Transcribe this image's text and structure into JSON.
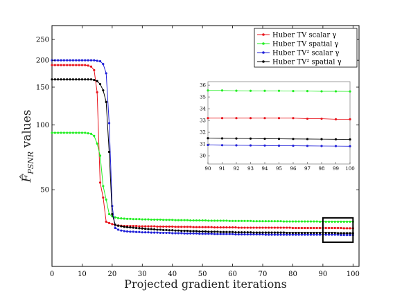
{
  "chart_data": [
    {
      "type": "line",
      "xlabel": "Projected gradient iterations",
      "ylabel": "F̂_PSNR values",
      "xlim": [
        0,
        102
      ],
      "ylim": [
        22,
        290
      ],
      "yscale": "log",
      "grid": false,
      "legend": "top-right",
      "x_ticks": [
        0,
        10,
        20,
        30,
        40,
        50,
        60,
        70,
        80,
        90,
        100
      ],
      "y_ticks": [
        50,
        100,
        150,
        200,
        250
      ],
      "x_tick_labels": [
        "0",
        "10",
        "20",
        "30",
        "40",
        "50",
        "60",
        "70",
        "80",
        "90",
        "100"
      ],
      "y_tick_labels": [
        "50",
        "100",
        "150",
        "200",
        "250"
      ],
      "x": [
        0,
        1,
        2,
        3,
        4,
        5,
        6,
        7,
        8,
        9,
        10,
        11,
        12,
        13,
        14,
        15,
        16,
        17,
        18,
        19,
        20,
        21,
        22,
        23,
        24,
        25,
        26,
        27,
        28,
        29,
        30,
        31,
        32,
        33,
        34,
        35,
        36,
        37,
        38,
        39,
        40,
        41,
        42,
        43,
        44,
        45,
        46,
        47,
        48,
        49,
        50,
        51,
        52,
        53,
        54,
        55,
        56,
        57,
        58,
        59,
        60,
        61,
        62,
        63,
        64,
        65,
        66,
        67,
        68,
        69,
        70,
        71,
        72,
        73,
        74,
        75,
        76,
        77,
        78,
        79,
        80,
        81,
        82,
        83,
        84,
        85,
        86,
        87,
        88,
        89,
        90,
        91,
        92,
        93,
        94,
        95,
        96,
        97,
        98,
        99,
        100
      ],
      "series": [
        {
          "name": "Huber TV scalar γ",
          "color": "#e8141c",
          "values": [
            190,
            190,
            190,
            190,
            190,
            190,
            190,
            190,
            190,
            190,
            190,
            190,
            189,
            187,
            180,
            142,
            54,
            46,
            35.5,
            35.0,
            34.6,
            34.3,
            34.1,
            34.0,
            33.9,
            33.9,
            33.9,
            33.9,
            33.9,
            33.8,
            33.8,
            33.8,
            33.8,
            33.8,
            33.8,
            33.7,
            33.7,
            33.7,
            33.7,
            33.7,
            33.7,
            33.6,
            33.6,
            33.6,
            33.6,
            33.6,
            33.6,
            33.5,
            33.5,
            33.5,
            33.5,
            33.5,
            33.5,
            33.5,
            33.4,
            33.4,
            33.4,
            33.4,
            33.4,
            33.4,
            33.4,
            33.4,
            33.3,
            33.3,
            33.3,
            33.3,
            33.3,
            33.3,
            33.3,
            33.3,
            33.3,
            33.3,
            33.3,
            33.3,
            33.3,
            33.3,
            33.3,
            33.3,
            33.3,
            33.3,
            33.2,
            33.2,
            33.2,
            33.2,
            33.2,
            33.2,
            33.2,
            33.2,
            33.2,
            33.2,
            33.2,
            33.2,
            33.2,
            33.2,
            33.2,
            33.2,
            33.2,
            33.1,
            33.1,
            33.1,
            33.1
          ]
        },
        {
          "name": "Huber TV spatial γ",
          "color": "#22ee22",
          "values": [
            92,
            92,
            92,
            92,
            92,
            92,
            92,
            92,
            92,
            92,
            92,
            92,
            91.5,
            91,
            89,
            82,
            72,
            52,
            45,
            38.5,
            37.6,
            37.2,
            36.9,
            36.8,
            36.7,
            36.6,
            36.6,
            36.5,
            36.5,
            36.5,
            36.4,
            36.4,
            36.4,
            36.3,
            36.3,
            36.3,
            36.3,
            36.2,
            36.2,
            36.2,
            36.2,
            36.1,
            36.1,
            36.1,
            36.1,
            36.1,
            36.0,
            36.0,
            36.0,
            36.0,
            36.0,
            36.0,
            35.9,
            35.9,
            35.9,
            35.9,
            35.9,
            35.9,
            35.9,
            35.8,
            35.8,
            35.8,
            35.8,
            35.8,
            35.8,
            35.8,
            35.8,
            35.7,
            35.7,
            35.7,
            35.7,
            35.7,
            35.7,
            35.7,
            35.7,
            35.7,
            35.7,
            35.6,
            35.6,
            35.6,
            35.6,
            35.6,
            35.6,
            35.6,
            35.6,
            35.6,
            35.6,
            35.6,
            35.6,
            35.5,
            35.5,
            35.5,
            35.5,
            35.5,
            35.5,
            35.5,
            35.5,
            35.5,
            35.5,
            35.5,
            35.5
          ]
        },
        {
          "name": "Huber TV² scalar γ",
          "color": "#1f1fd8",
          "values": [
            200,
            200,
            200,
            200,
            200,
            200,
            200,
            200,
            200,
            200,
            200,
            200,
            200,
            200,
            200,
            199,
            198,
            192,
            174,
            102,
            42,
            33.2,
            32.6,
            32.3,
            32.1,
            32.0,
            31.9,
            31.9,
            31.8,
            31.8,
            31.7,
            31.7,
            31.7,
            31.6,
            31.6,
            31.6,
            31.5,
            31.5,
            31.5,
            31.5,
            31.4,
            31.4,
            31.4,
            31.4,
            31.3,
            31.3,
            31.3,
            31.3,
            31.3,
            31.2,
            31.2,
            31.2,
            31.2,
            31.2,
            31.1,
            31.1,
            31.1,
            31.1,
            31.1,
            31.1,
            31.1,
            31.0,
            31.0,
            31.0,
            31.0,
            31.0,
            31.0,
            31.0,
            31.0,
            31.0,
            31.0,
            30.9,
            30.9,
            30.9,
            30.9,
            30.9,
            30.9,
            30.9,
            30.9,
            30.9,
            30.9,
            30.9,
            30.9,
            30.9,
            30.9,
            30.9,
            30.9,
            30.9,
            30.9,
            30.9,
            30.9,
            30.9,
            30.9,
            30.9,
            30.9,
            30.9,
            30.8,
            30.8,
            30.8,
            30.8,
            30.8
          ]
        },
        {
          "name": "Huber TV² spatial γ",
          "color": "#000000",
          "values": [
            163,
            163,
            163,
            163,
            163,
            163,
            163,
            163,
            163,
            163,
            163,
            163,
            163,
            163,
            162,
            160,
            155,
            145,
            128,
            75,
            38.5,
            34.4,
            34.0,
            33.8,
            33.6,
            33.5,
            33.4,
            33.3,
            33.2,
            33.1,
            33.0,
            32.9,
            32.8,
            32.8,
            32.7,
            32.6,
            32.6,
            32.5,
            32.5,
            32.4,
            32.4,
            32.3,
            32.3,
            32.2,
            32.2,
            32.2,
            32.1,
            32.1,
            32.1,
            32.0,
            32.0,
            32.0,
            31.9,
            31.9,
            31.9,
            31.9,
            31.8,
            31.8,
            31.8,
            31.8,
            31.8,
            31.7,
            31.7,
            31.7,
            31.7,
            31.7,
            31.7,
            31.6,
            31.6,
            31.6,
            31.6,
            31.6,
            31.6,
            31.6,
            31.6,
            31.6,
            31.6,
            31.6,
            31.5,
            31.5,
            31.5,
            31.5,
            31.5,
            31.5,
            31.5,
            31.5,
            31.5,
            31.5,
            31.5,
            31.5,
            31.5,
            31.5,
            31.5,
            31.5,
            31.5,
            31.4,
            31.4,
            31.4,
            31.4,
            31.4,
            31.4
          ]
        }
      ],
      "highlight_box": {
        "x": [
          90,
          100
        ],
        "y": [
          28.5,
          37
        ]
      }
    },
    {
      "type": "line",
      "role": "inset",
      "xlim": [
        90,
        100
      ],
      "ylim": [
        29.3,
        36.3
      ],
      "x_ticks": [
        90,
        91,
        92,
        93,
        94,
        95,
        96,
        97,
        98,
        99,
        100
      ],
      "y_ticks": [
        30,
        31,
        32,
        33,
        34,
        35,
        36
      ],
      "x_tick_labels": [
        "90",
        "91",
        "92",
        "93",
        "94",
        "95",
        "96",
        "97",
        "98",
        "99",
        "100"
      ],
      "y_tick_labels": [
        "30",
        "31",
        "32",
        "33",
        "34",
        "35",
        "36"
      ],
      "x": [
        90,
        91,
        92,
        93,
        94,
        95,
        96,
        97,
        98,
        99,
        100
      ],
      "series": [
        {
          "name": "Huber TV scalar γ",
          "color": "#e8141c",
          "values": [
            33.2,
            33.2,
            33.2,
            33.2,
            33.2,
            33.2,
            33.2,
            33.15,
            33.15,
            33.1,
            33.1
          ]
        },
        {
          "name": "Huber TV spatial γ",
          "color": "#22ee22",
          "values": [
            35.55,
            35.55,
            35.53,
            35.52,
            35.52,
            35.52,
            35.5,
            35.5,
            35.48,
            35.48,
            35.47
          ]
        },
        {
          "name": "Huber TV² scalar γ",
          "color": "#1f1fd8",
          "values": [
            30.92,
            30.9,
            30.89,
            30.88,
            30.87,
            30.86,
            30.85,
            30.84,
            30.83,
            30.82,
            30.81
          ]
        },
        {
          "name": "Huber TV² spatial γ",
          "color": "#000000",
          "values": [
            31.49,
            31.48,
            31.47,
            31.46,
            31.45,
            31.44,
            31.43,
            31.42,
            31.41,
            31.4,
            31.39
          ]
        }
      ]
    }
  ]
}
